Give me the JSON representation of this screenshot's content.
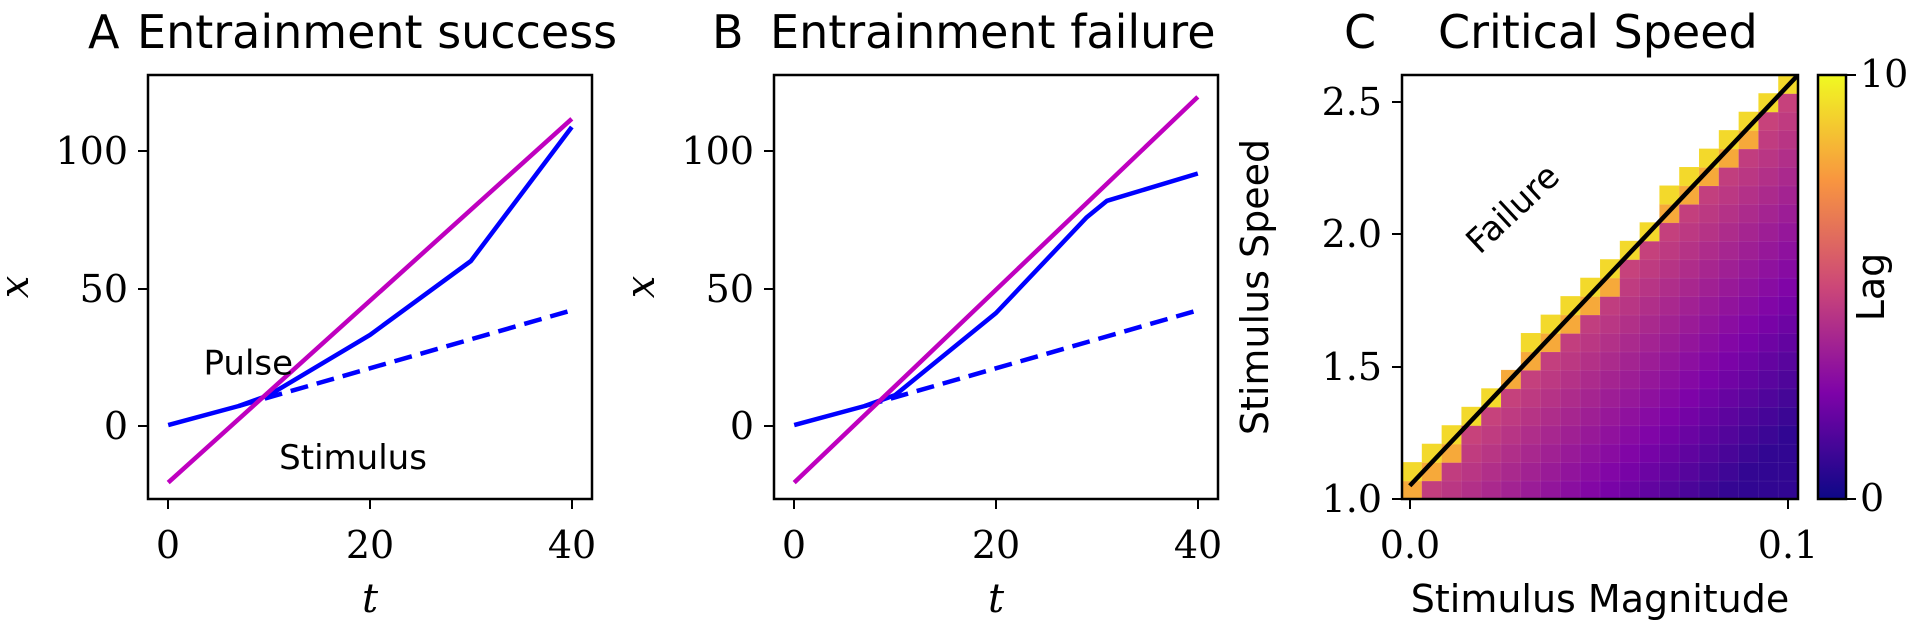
{
  "chart_data": [
    {
      "panel_letter": "A",
      "title": "Entrainment success",
      "type": "line",
      "xlabel": "t",
      "ylabel": "x",
      "xlim": [
        -2,
        42
      ],
      "ylim": [
        -27,
        128
      ],
      "xticks": [
        0,
        20,
        40
      ],
      "yticks": [
        0,
        50,
        100
      ],
      "series": [
        {
          "style": "solid",
          "color": "#0000ff",
          "points": [
            [
              0,
              0
            ],
            [
              7,
              7
            ],
            [
              10,
              11
            ],
            [
              20,
              33
            ],
            [
              30,
              60
            ],
            [
              40,
              109
            ]
          ]
        },
        {
          "style": "dashed",
          "color": "#0000ff",
          "points": [
            [
              7,
              7
            ],
            [
              40,
              42
            ]
          ]
        },
        {
          "style": "solid",
          "color": "#bf00bf",
          "points": [
            [
              0,
              -21
            ],
            [
              40,
              112
            ]
          ]
        }
      ],
      "annotations": [
        {
          "text": "Pulse",
          "x": 3.5,
          "y": 18.5
        },
        {
          "text": "Stimulus",
          "x": 11,
          "y": -16
        }
      ]
    },
    {
      "panel_letter": "B",
      "title": "Entrainment failure",
      "type": "line",
      "xlabel": "t",
      "ylabel": "x",
      "xlim": [
        -2,
        42
      ],
      "ylim": [
        -27,
        128
      ],
      "xticks": [
        0,
        20,
        40
      ],
      "yticks": [
        0,
        50,
        100
      ],
      "series": [
        {
          "style": "solid",
          "color": "#0000ff",
          "points": [
            [
              0,
              0
            ],
            [
              7,
              7
            ],
            [
              10,
              11
            ],
            [
              20,
              41
            ],
            [
              29,
              76
            ],
            [
              31,
              82
            ],
            [
              40,
              92
            ]
          ]
        },
        {
          "style": "dashed",
          "color": "#0000ff",
          "points": [
            [
              7,
              7
            ],
            [
              40,
              42
            ]
          ]
        },
        {
          "style": "solid",
          "color": "#bf00bf",
          "points": [
            [
              0,
              -21
            ],
            [
              40,
              120
            ]
          ]
        }
      ],
      "annotations": []
    },
    {
      "panel_letter": "C",
      "title": "Critical Speed",
      "type": "heatmap",
      "xlabel": "Stimulus Magnitude",
      "ylabel": "Stimulus Speed",
      "xlim": [
        -0.002,
        0.1
      ],
      "ylim": [
        1.0,
        2.6
      ],
      "xticks": [
        0.0,
        0.1
      ],
      "xticklabels": [
        "0.0",
        "0.1"
      ],
      "yticks": [
        1.0,
        1.5,
        2.0,
        2.5
      ],
      "yticklabels": [
        "1.0",
        "1.5",
        "2.0",
        "2.5"
      ],
      "colorbar_label": "Lag",
      "colorbar_ticks": [
        0,
        10
      ],
      "cmap": "plasma",
      "grid": {
        "nx": 20,
        "ny": 23,
        "x0": -0.002,
        "dx": 0.0051,
        "y0": 1.0,
        "dy": 0.0696
      },
      "boundary_line": {
        "x": [
          0.0,
          0.1
        ],
        "y": [
          1.05,
          2.6
        ],
        "color": "#000000"
      },
      "annotations": [
        {
          "text": "Failure",
          "x": 0.018,
          "y": 1.92,
          "rotation": -43
        }
      ]
    }
  ]
}
